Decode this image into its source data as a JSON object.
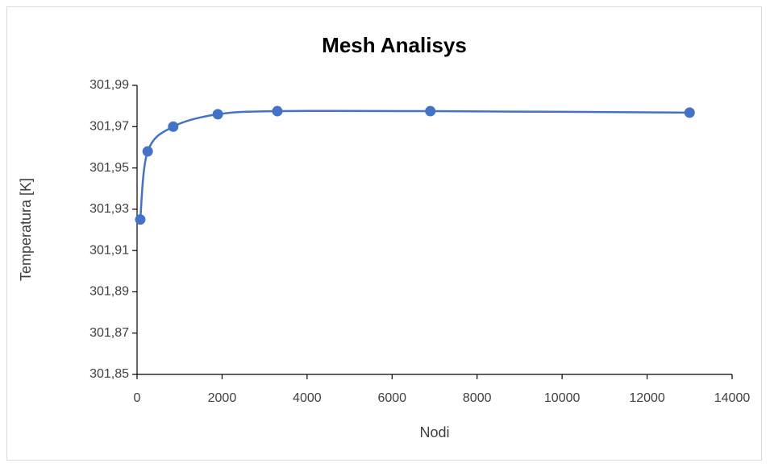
{
  "chart_data": {
    "type": "scatter",
    "title": "Mesh Analisys",
    "x_label": "Nodi",
    "y_label": "Temperatura [K]",
    "series": [
      {
        "name": "Temperatura",
        "color": "#4472c4",
        "x": [
          75,
          250,
          850,
          1900,
          3300,
          6900,
          13000
        ],
        "values": [
          301.925,
          301.958,
          301.97,
          301.976,
          301.9775,
          301.9775,
          301.9768
        ]
      }
    ],
    "smooth": true,
    "xlim": [
      0,
      14000
    ],
    "xticks": [
      0,
      2000,
      4000,
      6000,
      8000,
      10000,
      12000,
      14000
    ],
    "ylim": [
      301.85,
      301.99
    ],
    "yticks": [
      {
        "value": 301.85,
        "label": "301,85"
      },
      {
        "value": 301.87,
        "label": "301,87"
      },
      {
        "value": 301.89,
        "label": "301,89"
      },
      {
        "value": 301.91,
        "label": "301,91"
      },
      {
        "value": 301.93,
        "label": "301,93"
      },
      {
        "value": 301.95,
        "label": "301,95"
      },
      {
        "value": 301.97,
        "label": "301,97"
      },
      {
        "value": 301.99,
        "label": "301,99"
      }
    ],
    "grid": false
  }
}
